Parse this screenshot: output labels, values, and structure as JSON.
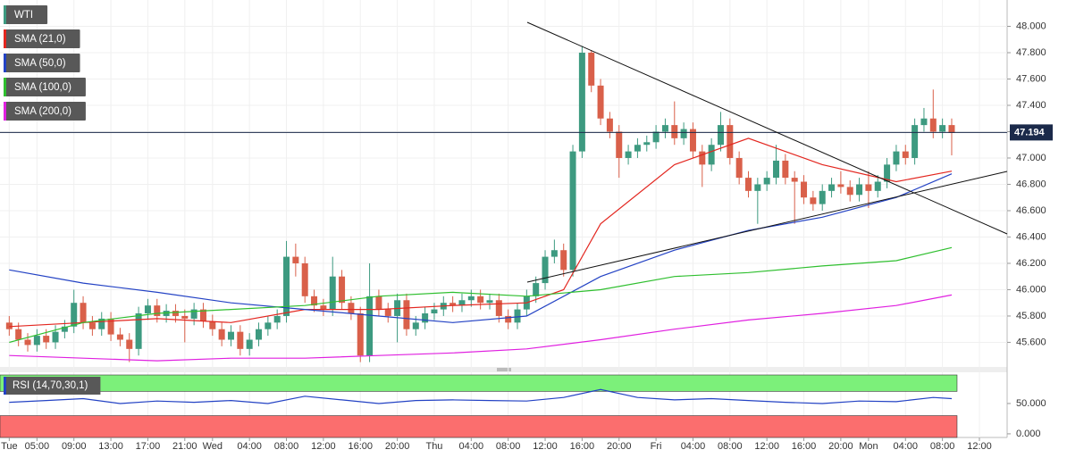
{
  "chart_data": [
    {
      "type": "candlestick",
      "title": "WTI",
      "up_color": "#3d9a80",
      "down_color": "#d9604a",
      "title_color": "#3d9a80",
      "open": [
        45.75,
        45.7,
        45.62,
        45.58,
        45.65,
        45.6,
        45.68,
        45.72,
        45.9,
        45.75,
        45.7,
        45.78,
        45.66,
        45.62,
        45.55,
        45.82,
        45.88,
        45.8,
        45.84,
        45.8,
        45.78,
        45.85,
        45.76,
        45.7,
        45.62,
        45.68,
        45.55,
        45.62,
        45.7,
        45.75,
        45.8,
        46.25,
        46.2,
        45.95,
        45.88,
        45.85,
        46.1,
        45.9,
        45.82,
        45.5,
        45.95,
        45.85,
        45.8,
        45.92,
        45.7,
        45.75,
        45.82,
        45.85,
        45.9,
        45.88,
        45.92,
        45.95,
        45.9,
        45.92,
        45.8,
        45.75,
        45.85,
        45.95,
        46.05,
        46.25,
        46.3,
        46.15,
        47.05,
        47.8,
        47.55,
        47.3,
        47.2,
        47.0,
        47.05,
        47.1,
        47.12,
        47.2,
        47.25,
        47.15,
        47.22,
        47.05,
        46.95,
        47.1,
        47.25,
        47.0,
        46.85,
        46.75,
        46.8,
        46.85,
        46.98,
        46.85,
        46.82,
        46.7,
        46.65,
        46.75,
        46.8,
        46.78,
        46.72,
        46.8,
        46.75,
        46.82,
        46.95,
        47.05,
        47.0,
        47.25,
        47.3,
        47.2,
        47.25
      ],
      "high": [
        45.8,
        45.75,
        45.67,
        45.7,
        45.7,
        45.73,
        45.77,
        46.0,
        45.95,
        45.8,
        45.83,
        45.83,
        45.71,
        45.67,
        45.87,
        45.93,
        45.93,
        45.89,
        45.89,
        45.85,
        45.9,
        45.9,
        45.81,
        45.75,
        45.73,
        45.73,
        45.67,
        45.75,
        45.8,
        45.85,
        46.37,
        46.35,
        46.25,
        46.0,
        45.93,
        46.25,
        46.15,
        45.95,
        45.87,
        46.2,
        46.0,
        45.9,
        45.97,
        45.97,
        45.8,
        45.87,
        45.9,
        45.95,
        45.95,
        45.97,
        46.0,
        46.0,
        45.97,
        45.97,
        45.85,
        45.9,
        46.0,
        46.1,
        46.3,
        46.38,
        46.35,
        47.1,
        47.85,
        47.82,
        47.6,
        47.35,
        47.25,
        47.1,
        47.15,
        47.17,
        47.25,
        47.3,
        47.43,
        47.27,
        47.27,
        47.1,
        47.15,
        47.35,
        47.3,
        47.05,
        46.9,
        46.85,
        46.9,
        47.1,
        47.03,
        46.9,
        46.87,
        46.75,
        46.8,
        46.85,
        46.9,
        46.83,
        46.85,
        46.9,
        46.87,
        47.0,
        47.1,
        47.1,
        47.3,
        47.38,
        47.52,
        47.3,
        47.3
      ],
      "low": [
        45.65,
        45.57,
        45.53,
        45.53,
        45.55,
        45.55,
        45.63,
        45.67,
        45.7,
        45.65,
        45.65,
        45.61,
        45.57,
        45.45,
        45.5,
        45.77,
        45.75,
        45.75,
        45.75,
        45.6,
        45.73,
        45.71,
        45.65,
        45.57,
        45.57,
        45.5,
        45.5,
        45.57,
        45.65,
        45.7,
        45.75,
        46.1,
        45.9,
        45.83,
        45.8,
        45.8,
        45.85,
        45.77,
        45.45,
        45.45,
        45.8,
        45.75,
        45.6,
        45.65,
        45.65,
        45.7,
        45.77,
        45.8,
        45.83,
        45.83,
        45.87,
        45.85,
        45.85,
        45.75,
        45.7,
        45.7,
        45.8,
        45.9,
        46.0,
        46.2,
        46.1,
        46.1,
        47.0,
        47.5,
        47.25,
        47.15,
        46.85,
        46.95,
        47.0,
        47.05,
        47.07,
        47.15,
        47.1,
        47.1,
        47.0,
        46.78,
        46.9,
        47.05,
        46.95,
        46.8,
        46.7,
        46.5,
        46.75,
        46.8,
        46.8,
        46.5,
        46.65,
        46.6,
        46.6,
        46.7,
        46.73,
        46.67,
        46.67,
        46.62,
        46.7,
        46.77,
        46.9,
        46.95,
        46.95,
        47.2,
        47.15,
        47.15,
        47.02
      ],
      "close": [
        45.7,
        45.62,
        45.58,
        45.65,
        45.6,
        45.68,
        45.72,
        45.9,
        45.75,
        45.7,
        45.78,
        45.66,
        45.62,
        45.55,
        45.82,
        45.88,
        45.8,
        45.84,
        45.8,
        45.78,
        45.85,
        45.76,
        45.7,
        45.62,
        45.68,
        45.55,
        45.62,
        45.7,
        45.75,
        45.8,
        46.25,
        46.2,
        45.95,
        45.88,
        45.85,
        46.1,
        45.9,
        45.82,
        45.5,
        45.95,
        45.85,
        45.8,
        45.92,
        45.7,
        45.75,
        45.82,
        45.85,
        45.9,
        45.88,
        45.92,
        45.95,
        45.9,
        45.92,
        45.8,
        45.75,
        45.85,
        45.95,
        46.05,
        46.25,
        46.3,
        46.15,
        47.05,
        47.8,
        47.55,
        47.3,
        47.2,
        47.0,
        47.05,
        47.1,
        47.12,
        47.2,
        47.25,
        47.15,
        47.22,
        47.05,
        46.95,
        47.1,
        47.25,
        47.0,
        46.85,
        46.75,
        46.8,
        46.85,
        46.98,
        46.85,
        46.82,
        46.7,
        46.65,
        46.75,
        46.8,
        46.78,
        46.72,
        46.8,
        46.75,
        46.82,
        46.95,
        47.05,
        47.0,
        47.25,
        47.3,
        47.2,
        47.25,
        47.19
      ],
      "series": [
        {
          "name": "SMA (21,0)",
          "color": "#e3261f",
          "x": [
            0,
            8,
            16,
            24,
            32,
            40,
            48,
            56,
            60,
            64,
            72,
            80,
            88,
            96,
            102
          ],
          "values": [
            45.72,
            45.75,
            45.78,
            45.75,
            45.85,
            45.85,
            45.88,
            45.9,
            46.0,
            46.5,
            46.95,
            47.15,
            46.95,
            46.82,
            46.9
          ]
        },
        {
          "name": "SMA (50,0)",
          "color": "#2342c4",
          "x": [
            0,
            8,
            16,
            24,
            32,
            40,
            48,
            56,
            64,
            72,
            80,
            88,
            96,
            102
          ],
          "values": [
            46.15,
            46.05,
            45.98,
            45.9,
            45.85,
            45.8,
            45.75,
            45.8,
            46.1,
            46.3,
            46.45,
            46.55,
            46.7,
            46.88
          ]
        },
        {
          "name": "SMA (100,0)",
          "color": "#2fbf2f",
          "x": [
            0,
            8,
            16,
            24,
            32,
            40,
            48,
            56,
            64,
            72,
            80,
            88,
            96,
            102
          ],
          "values": [
            45.6,
            45.75,
            45.82,
            45.85,
            45.88,
            45.95,
            45.98,
            45.95,
            46.0,
            46.1,
            46.13,
            46.18,
            46.22,
            46.32
          ]
        },
        {
          "name": "SMA (200,0)",
          "color": "#e020e0",
          "x": [
            0,
            8,
            16,
            24,
            32,
            40,
            48,
            56,
            64,
            72,
            80,
            88,
            96,
            102
          ],
          "values": [
            45.5,
            45.48,
            45.46,
            45.48,
            45.48,
            45.5,
            45.52,
            45.55,
            45.62,
            45.7,
            45.77,
            45.82,
            45.88,
            45.96
          ]
        }
      ],
      "last_price": 47.194,
      "last_price_color": "#1b2a4a",
      "xlim": [
        -1,
        108
      ],
      "ylim": [
        45.42,
        48.2
      ],
      "grid": true,
      "yticks": [
        {
          "value": 48,
          "label": "48.000"
        },
        {
          "value": 47.8,
          "label": "47.800"
        },
        {
          "value": 47.6,
          "label": "47.600"
        },
        {
          "value": 47.4,
          "label": "47.400"
        },
        {
          "value": 47.2,
          "label": "47.200"
        },
        {
          "value": 47,
          "label": "47.000"
        },
        {
          "value": 46.8,
          "label": "46.800"
        },
        {
          "value": 46.6,
          "label": "46.600"
        },
        {
          "value": 46.4,
          "label": "46.400"
        },
        {
          "value": 46.2,
          "label": "46.200"
        },
        {
          "value": 46,
          "label": "46.000"
        },
        {
          "value": 45.8,
          "label": "45.800"
        },
        {
          "value": 45.6,
          "label": "45.600"
        }
      ],
      "xticks": [
        {
          "value": 0,
          "label": "Tue"
        },
        {
          "value": 3,
          "label": "05:00"
        },
        {
          "value": 7,
          "label": "09:00"
        },
        {
          "value": 11,
          "label": "13:00"
        },
        {
          "value": 15,
          "label": "17:00"
        },
        {
          "value": 19,
          "label": "21:00"
        },
        {
          "value": 22,
          "label": "Wed"
        },
        {
          "value": 26,
          "label": "04:00"
        },
        {
          "value": 30,
          "label": "08:00"
        },
        {
          "value": 34,
          "label": "12:00"
        },
        {
          "value": 38,
          "label": "16:00"
        },
        {
          "value": 42,
          "label": "20:00"
        },
        {
          "value": 46,
          "label": "Thu"
        },
        {
          "value": 50,
          "label": "04:00"
        },
        {
          "value": 54,
          "label": "08:00"
        },
        {
          "value": 58,
          "label": "12:00"
        },
        {
          "value": 62,
          "label": "16:00"
        },
        {
          "value": 66,
          "label": "20:00"
        },
        {
          "value": 70,
          "label": "Fri"
        },
        {
          "value": 74,
          "label": "04:00"
        },
        {
          "value": 78,
          "label": "08:00"
        },
        {
          "value": 82,
          "label": "12:00"
        },
        {
          "value": 86,
          "label": "16:00"
        },
        {
          "value": 90,
          "label": "20:00"
        },
        {
          "value": 93,
          "label": "Mon"
        },
        {
          "value": 97,
          "label": "04:00"
        },
        {
          "value": 101,
          "label": "08:00"
        },
        {
          "value": 105,
          "label": "12:00"
        }
      ]
    },
    {
      "type": "line",
      "series": [
        {
          "name": "RSI (14,70,30,1)",
          "color": "#2342c4",
          "x": [
            0,
            4,
            8,
            12,
            16,
            20,
            24,
            28,
            32,
            36,
            40,
            44,
            48,
            52,
            56,
            60,
            64,
            68,
            72,
            76,
            80,
            84,
            88,
            92,
            96,
            100,
            102
          ],
          "values": [
            52,
            55,
            58,
            50,
            54,
            52,
            55,
            50,
            62,
            56,
            50,
            55,
            56,
            55,
            54,
            60,
            73,
            60,
            56,
            58,
            55,
            52,
            50,
            54,
            53,
            60,
            58
          ]
        }
      ],
      "upper": 70,
      "lower": 30,
      "upper_color": "#7cf07a",
      "lower_color": "#fb6e6e",
      "xlim": [
        -1,
        108
      ],
      "ylim": [
        -6,
        100
      ],
      "yticks": [
        {
          "value": 50,
          "label": "50.000"
        },
        {
          "value": 0,
          "label": "0.000"
        }
      ]
    }
  ]
}
